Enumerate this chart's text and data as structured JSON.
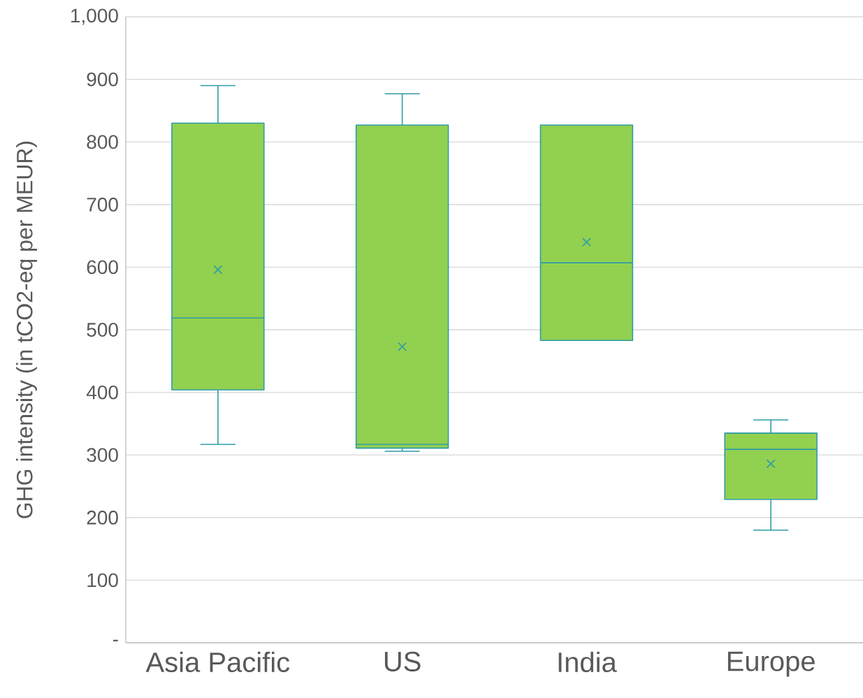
{
  "chart_data": {
    "type": "box",
    "ylabel": "GHG intensity (in tCO2-eq per MEUR)",
    "categories": [
      "Asia Pacific",
      "US",
      "India",
      "Europe"
    ],
    "series": [
      {
        "color": "#92d050",
        "boxes": [
          {
            "low": 317,
            "q1": 404,
            "median": 519,
            "q3": 830,
            "high": 890,
            "mean": 596
          },
          {
            "low": 306,
            "q1": 311,
            "median": 317,
            "q3": 827,
            "high": 877,
            "mean": 473
          },
          {
            "low": 483,
            "q1": 483,
            "median": 607,
            "q3": 827,
            "high": 827,
            "mean": 640
          },
          {
            "low": 180,
            "q1": 229,
            "median": 309,
            "q3": 335,
            "high": 356,
            "mean": 286
          }
        ]
      }
    ],
    "ylim": [
      0,
      1000
    ],
    "yticks": [
      {
        "value": 0,
        "label": "-"
      },
      100,
      200,
      300,
      400,
      500,
      600,
      700,
      800,
      900,
      {
        "value": 1000,
        "label": "1,000"
      }
    ],
    "grid": "y"
  }
}
